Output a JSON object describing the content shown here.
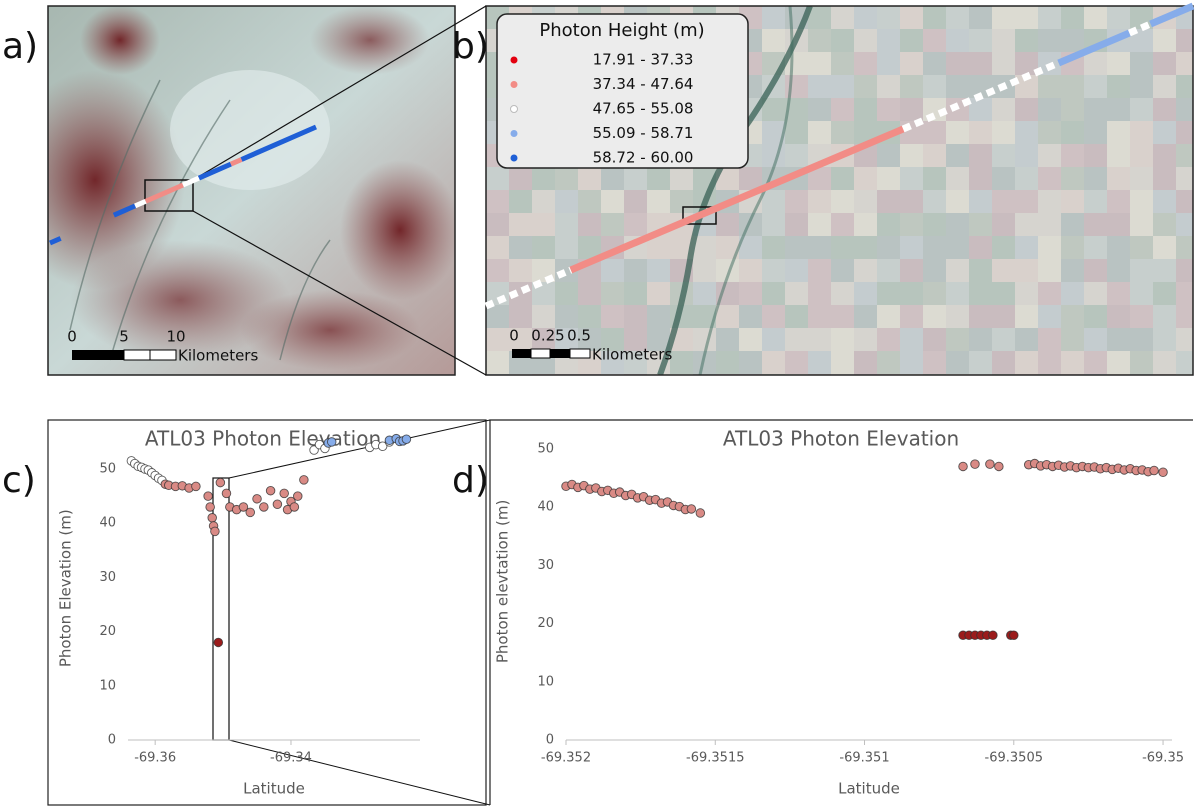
{
  "panel_labels": [
    "a)",
    "b)",
    "c)",
    "d)"
  ],
  "map_a": {
    "scale_labels": [
      0,
      5,
      10
    ],
    "scale_unit": "Kilometers"
  },
  "map_b": {
    "legend_title": "Photon Height (m)",
    "legend": [
      {
        "label": "17.91 - 37.33",
        "color": "#e3000f"
      },
      {
        "label": "37.34 - 47.64",
        "color": "#f28c86"
      },
      {
        "label": "47.65 - 55.08",
        "color": "#ffffff"
      },
      {
        "label": "55.09 - 58.71",
        "color": "#86acea"
      },
      {
        "label": "58.72 - 60.00",
        "color": "#1f5fd6"
      }
    ],
    "scale_labels": [
      0,
      0.25,
      0.5
    ],
    "scale_unit": "Kilometers"
  },
  "chart_data": [
    {
      "type": "scatter",
      "title": "ATL03 Photon Elevation",
      "x_label": "Latitude",
      "y_label": "Photon Elevation (m)",
      "xlim": [
        -69.364,
        -69.321
      ],
      "xticks": [
        -69.36,
        -69.34
      ],
      "ylim": [
        0,
        56
      ],
      "yticks": [
        0,
        10,
        20,
        30,
        40,
        50
      ],
      "series": [
        {
          "color": "#ffffff",
          "x": [
            -69.3635,
            -69.363,
            -69.3625,
            -69.362,
            -69.3615,
            -69.361,
            -69.3605,
            -69.36,
            -69.3595,
            -69.359,
            -69.3366,
            -69.3358,
            -69.335,
            -69.3284,
            -69.3275,
            -69.3265,
            -69.3255
          ],
          "values": [
            51.5,
            51,
            50.5,
            50.3,
            50,
            49.8,
            49.3,
            48.8,
            48.3,
            47.9,
            53.5,
            54.5,
            53.8,
            54,
            54.5,
            54.2,
            55
          ]
        },
        {
          "color": "#d98a85",
          "x": [
            -69.3585,
            -69.358,
            -69.357,
            -69.356,
            -69.355,
            -69.354,
            -69.3522,
            -69.3519,
            -69.3516,
            -69.3514,
            -69.3512,
            -69.3504,
            -69.3495,
            -69.349,
            -69.348,
            -69.347,
            -69.346,
            -69.345,
            -69.344,
            -69.343,
            -69.342,
            -69.341,
            -69.3405,
            -69.34,
            -69.3395,
            -69.339,
            -69.3381
          ],
          "values": [
            47.2,
            47,
            46.8,
            46.9,
            46.5,
            46.8,
            45,
            43,
            41,
            39.5,
            38.5,
            47.5,
            45.5,
            43,
            42.5,
            43,
            42,
            44.5,
            43,
            46,
            43.5,
            45.5,
            42.5,
            44,
            43,
            45,
            48
          ]
        },
        {
          "color": "#9b1c1c",
          "x": [
            -69.3507
          ],
          "values": [
            18
          ]
        },
        {
          "color": "#86acea",
          "x": [
            -69.3345,
            -69.334,
            -69.3255,
            -69.3245,
            -69.324,
            -69.3235,
            -69.323
          ],
          "values": [
            54.8,
            55,
            55.3,
            55.6,
            55.1,
            55.2,
            55.5
          ]
        }
      ]
    },
    {
      "type": "scatter",
      "title": "ATL03 Photon Elevation",
      "x_label": "Latitude",
      "y_label": "Photon elevtation (m)",
      "xlim": [
        -69.352,
        -69.34997
      ],
      "xticks": [
        -69.352,
        -69.3515,
        -69.351,
        -69.3505,
        -69.35
      ],
      "ylim": [
        0,
        54.5
      ],
      "yticks": [
        0,
        10,
        20,
        30,
        40,
        50
      ],
      "series": [
        {
          "color": "#d98a85",
          "x": [
            -69.352,
            -69.35198,
            -69.35196,
            -69.35194,
            -69.35192,
            -69.3519,
            -69.35188,
            -69.35186,
            -69.35184,
            -69.35182,
            -69.3518,
            -69.35178,
            -69.35176,
            -69.35174,
            -69.35172,
            -69.3517,
            -69.35168,
            -69.35166,
            -69.35164,
            -69.35162,
            -69.3516,
            -69.35158,
            -69.35155,
            -69.35067,
            -69.35063,
            -69.35058,
            -69.35055,
            -69.35045,
            -69.35043,
            -69.35041,
            -69.35039,
            -69.35037,
            -69.35035,
            -69.35033,
            -69.35031,
            -69.35029,
            -69.35027,
            -69.35025,
            -69.35023,
            -69.35021,
            -69.35019,
            -69.35017,
            -69.35015,
            -69.35013,
            -69.35011,
            -69.35009,
            -69.35007,
            -69.35005,
            -69.35003,
            -69.35
          ],
          "values": [
            43.6,
            43.9,
            43.4,
            43.7,
            43.1,
            43.3,
            42.7,
            42.9,
            42.4,
            42.6,
            42,
            42.2,
            41.6,
            41.8,
            41.2,
            41.3,
            40.7,
            40.9,
            40.3,
            40.1,
            39.6,
            39.7,
            39,
            47,
            47.4,
            47.4,
            47,
            47.3,
            47.5,
            47.1,
            47.3,
            47,
            47.2,
            46.9,
            47.1,
            46.8,
            47,
            46.8,
            46.9,
            46.6,
            46.8,
            46.5,
            46.7,
            46.4,
            46.6,
            46.3,
            46.4,
            46.1,
            46.3,
            46
          ]
        },
        {
          "color": "#9b1c1c",
          "x": [
            -69.35067,
            -69.35065,
            -69.35063,
            -69.35061,
            -69.35059,
            -69.35057,
            -69.35051,
            -69.3505
          ],
          "values": [
            18,
            18,
            18,
            18,
            18,
            18,
            18,
            18
          ]
        }
      ]
    }
  ]
}
